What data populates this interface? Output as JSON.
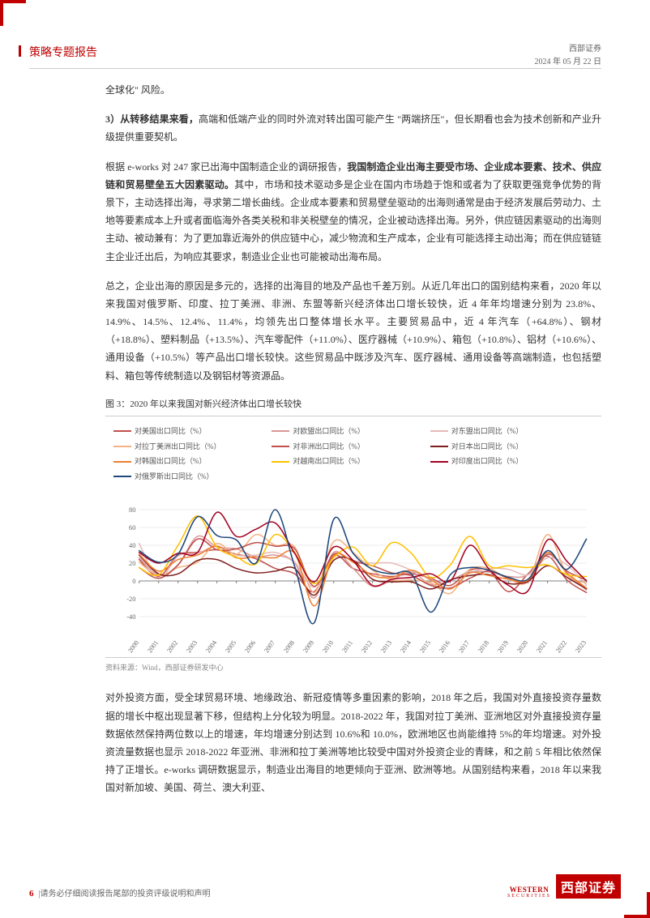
{
  "header": {
    "report_type": "策略专题报告",
    "company": "西部证券",
    "date": "2024 年 05 月 22 日"
  },
  "body": {
    "p0": "全球化\" 风险。",
    "p1_bold": "3）从转移结果来看，",
    "p1_rest": "高端和低端产业的同时外流对转出国可能产生 \"两端挤压\"，但长期看也会为技术创新和产业升级提供重要契机。",
    "p2a": "根据 e-works 对 247 家已出海中国制造企业的调研报告，",
    "p2_bold": "我国制造企业出海主要受市场、企业成本要素、技术、供应链和贸易壁垒五大因素驱动。",
    "p2b": "其中，市场和技术驱动多是企业在国内市场趋于饱和或者为了获取更强竞争优势的背景下，主动选择出海，寻求第二增长曲线。企业成本要素和贸易壁垒驱动的出海则通常是由于经济发展后劳动力、土地等要素成本上升或者面临海外各类关税和非关税壁垒的情况，企业被动选择出海。另外，供应链因素驱动的出海则主动、被动兼有：为了更加靠近海外的供应链中心，减少物流和生产成本，企业有可能选择主动出海；而在供应链链主企业迁出后，为响应其要求，制造业企业也可能被动出海布局。",
    "p3": "总之，企业出海的原因是多元的，选择的出海目的地及产品也千差万别。从近几年出口的国别结构来看，2020 年以来我国对俄罗斯、印度、拉丁美洲、非洲、东盟等新兴经济体出口增长较快，近 4 年年均增速分别为 23.8%、14.9%、14.5%、12.4%、11.4%，均领先出口整体增长水平。主要贸易品中，近 4 年汽车（+64.8%）、钢材（+18.8%）、塑料制品（+13.5%）、汽车零配件（+11.0%）、医疗器械（+10.9%）、箱包（+10.8%）、铝材（+10.6%）、通用设备（+10.5%）等产品出口增长较快。这些贸易品中既涉及汽车、医疗器械、通用设备等高端制造，也包括塑料、箱包等传统制造以及钢铝材等资源品。",
    "p4": "对外投资方面，受全球贸易环境、地缘政治、新冠疫情等多重因素的影响，2018 年之后，我国对外直接投资存量数据的增长中枢出现显著下移，但结构上分化较为明显。2018-2022 年，我国对拉丁美洲、亚洲地区对外直接投资存量数据依然保持两位数以上的增速，年均增速分别达到 10.6%和 10.0%，欧洲地区也尚能维持 5%的年均增速。对外投资流量数据也显示 2018-2022 年亚洲、非洲和拉丁美洲等地比较受中国对外投资企业的青睐，和之前 5 年相比依然保持了正增长。e-works 调研数据显示，制造业出海目的地更倾向于亚洲、欧洲等地。从国别结构来看，2018 年以来我国对新加坡、美国、荷兰、澳大利亚、"
  },
  "chart": {
    "title": "图 3：2020 年以来我国对新兴经济体出口增长较快",
    "source": "资料来源：Wind，西部证券研发中心",
    "ylim": [
      -60,
      100
    ],
    "yticks": [
      -40,
      -20,
      0,
      20,
      40,
      60,
      80
    ],
    "years": [
      "2000",
      "2001",
      "2002",
      "2003",
      "2004",
      "2005",
      "2006",
      "2007",
      "2008",
      "2009",
      "2010",
      "2011",
      "2012",
      "2013",
      "2014",
      "2015",
      "2016",
      "2017",
      "2018",
      "2019",
      "2020",
      "2021",
      "2022",
      "2023"
    ],
    "grid_color": "#d9d9d9",
    "axis_color": "#808080",
    "background_color": "#ffffff",
    "legend_fontsize": 9,
    "tick_fontsize": 8,
    "line_width": 1.5,
    "series": [
      {
        "name": "对美国出口同比（%）",
        "color": "#c0504d",
        "values": [
          24,
          5,
          29,
          32,
          35,
          30,
          25,
          14,
          8,
          -12,
          28,
          14,
          8,
          5,
          8,
          3,
          -5,
          12,
          11,
          -12,
          8,
          28,
          1,
          -13
        ]
      },
      {
        "name": "对欧盟出口同比（%）",
        "color": "#d99694",
        "values": [
          26,
          7,
          18,
          50,
          38,
          36,
          27,
          29,
          20,
          -19,
          32,
          14,
          -6,
          1,
          10,
          -4,
          1,
          10,
          10,
          5,
          7,
          32,
          9,
          -10
        ]
      },
      {
        "name": "对东盟出口同比（%）",
        "color": "#e6b9b8",
        "values": [
          42,
          3,
          28,
          31,
          39,
          29,
          29,
          32,
          21,
          -7,
          30,
          23,
          20,
          20,
          12,
          2,
          -8,
          9,
          14,
          13,
          7,
          26,
          18,
          -5
        ]
      },
      {
        "name": "对拉丁美洲出口同比（%）",
        "color": "#f4b183",
        "values": [
          21,
          6,
          15,
          21,
          42,
          30,
          52,
          40,
          38,
          -13,
          44,
          32,
          12,
          1,
          1,
          -2,
          -14,
          13,
          14,
          2,
          0,
          52,
          7,
          -2
        ]
      },
      {
        "name": "对非洲出口同比（%）",
        "color": "#bf504d",
        "values": [
          15,
          3,
          18,
          47,
          35,
          36,
          43,
          39,
          36,
          -6,
          30,
          22,
          17,
          9,
          6,
          -5,
          -8,
          3,
          11,
          3,
          -1,
          30,
          11,
          1
        ]
      },
      {
        "name": "对日本出口同比（%）",
        "color": "#7f1e1e",
        "values": [
          29,
          8,
          8,
          23,
          24,
          14,
          9,
          11,
          14,
          -16,
          23,
          23,
          2,
          -1,
          -1,
          -9,
          1,
          6,
          7,
          -3,
          0,
          17,
          4,
          -9
        ]
      },
      {
        "name": "对韩国出口同比（%）",
        "color": "#ed7d31",
        "values": [
          30,
          11,
          24,
          29,
          39,
          26,
          27,
          26,
          31,
          -28,
          28,
          21,
          6,
          4,
          12,
          1,
          -9,
          9,
          6,
          2,
          1,
          32,
          9,
          -8
        ]
      },
      {
        "name": "对越南出口同比（%）",
        "color": "#ffc000",
        "values": [
          15,
          7,
          40,
          73,
          38,
          27,
          19,
          52,
          32,
          -3,
          26,
          38,
          17,
          43,
          31,
          4,
          18,
          50,
          17,
          17,
          15,
          18,
          7,
          5
        ]
      },
      {
        "name": "对印度出口同比（%）",
        "color": "#a50021",
        "values": [
          32,
          20,
          31,
          32,
          77,
          50,
          58,
          65,
          31,
          -1,
          38,
          23,
          -5,
          2,
          4,
          8,
          0,
          40,
          13,
          -5,
          -11,
          46,
          22,
          0
        ]
      },
      {
        "name": "对俄罗斯出口同比（%）",
        "color": "#1f497d",
        "values": [
          34,
          21,
          30,
          72,
          51,
          46,
          20,
          80,
          16,
          -47,
          69,
          31,
          13,
          8,
          8,
          -35,
          7,
          15,
          12,
          4,
          2,
          34,
          13,
          47
        ]
      }
    ]
  },
  "footer": {
    "page": "6",
    "disclaimer_prefix": " | ",
    "disclaimer": "请务必仔细阅读报告尾部的投资评级说明和声明",
    "logo_en_top": "WESTERN",
    "logo_en_sub": "SECURITIES",
    "logo_cn": "西部证券"
  },
  "colors": {
    "brand": "#c00000",
    "text": "#333333",
    "muted": "#888888"
  }
}
